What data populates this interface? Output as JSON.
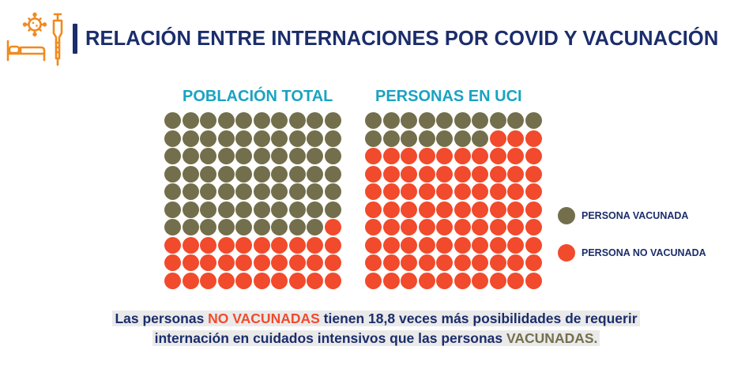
{
  "header": {
    "title": "RELACIÓN ENTRE INTERNACIONES POR COVID Y VACUNACIÓN",
    "icon": "hospital-bed-virus-syringe-icon"
  },
  "colors": {
    "title": "#1b2d6b",
    "panel_title": "#1aa3c2",
    "vaccinated": "#736f4c",
    "unvaccinated": "#f14a2c",
    "icon": "#f08a1e",
    "caption_bg": "#eaeaea"
  },
  "chart_data": [
    {
      "type": "waffle",
      "title": "POBLACIÓN TOTAL",
      "grid": [
        10,
        10
      ],
      "series": [
        {
          "name": "PERSONA VACUNADA",
          "value": 69
        },
        {
          "name": "PERSONA NO VACUNADA",
          "value": 31
        }
      ]
    },
    {
      "type": "waffle",
      "title": "PERSONAS EN UCI",
      "grid": [
        10,
        10
      ],
      "series": [
        {
          "name": "PERSONA VACUNADA",
          "value": 17
        },
        {
          "name": "PERSONA NO VACUNADA",
          "value": 83
        }
      ]
    }
  ],
  "legend": [
    {
      "label": "PERSONA VACUNADA",
      "color": "#736f4c"
    },
    {
      "label": "PERSONA NO VACUNADA",
      "color": "#f14a2c"
    }
  ],
  "caption": {
    "line1": {
      "before": "Las personas ",
      "highlight1": "NO VACUNADAS",
      "after": " tienen 18,8 veces más posibilidades de requerir"
    },
    "line2": {
      "before": "internación en cuidados intensivos que las personas ",
      "highlight2": "VACUNADAS."
    }
  }
}
